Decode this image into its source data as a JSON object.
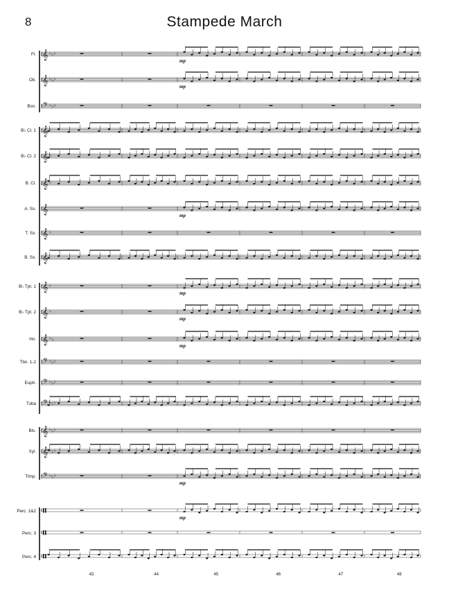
{
  "page_number": "8",
  "title": "Stampede March",
  "measure_numbers": [
    "43",
    "44",
    "45",
    "46",
    "47",
    "48"
  ],
  "instruments": [
    {
      "label": "Fl.",
      "clef": "treble",
      "key": 3
    },
    {
      "label": "Ob.",
      "clef": "treble",
      "key": 3
    },
    {
      "label": "Bsn.",
      "clef": "bass",
      "key": 3
    },
    {
      "label": "B♭ Cl. 1",
      "clef": "treble",
      "key": 1
    },
    {
      "label": "B♭ Cl. 2",
      "clef": "treble",
      "key": 1
    },
    {
      "label": "B. Cl.",
      "clef": "treble",
      "key": 1
    },
    {
      "label": "A. Sx.",
      "clef": "treble",
      "key": 0
    },
    {
      "label": "T. Sx.",
      "clef": "treble",
      "key": 1
    },
    {
      "label": "B. Sx.",
      "clef": "treble",
      "key": 0
    },
    {
      "label": "B♭ Tpt. 1",
      "clef": "treble",
      "key": 1
    },
    {
      "label": "B♭ Tpt. 2",
      "clef": "treble",
      "key": 1
    },
    {
      "label": "Hn.",
      "clef": "treble",
      "key": 2
    },
    {
      "label": "Tbn. 1-2",
      "clef": "bass",
      "key": 3
    },
    {
      "label": "Euph.",
      "clef": "bass",
      "key": 3
    },
    {
      "label": "Tuba",
      "clef": "bass",
      "key": 3
    },
    {
      "label": "Bls.",
      "clef": "treble",
      "key": 3
    },
    {
      "label": "Xyl.",
      "clef": "treble",
      "key": 3
    },
    {
      "label": "Timp.",
      "clef": "bass",
      "key": 3
    },
    {
      "label": "Perc. 1&2",
      "clef": "perc",
      "key": 0
    },
    {
      "label": "Perc. 3",
      "clef": "perc",
      "key": 0
    },
    {
      "label": "Perc. 4",
      "clef": "perc",
      "key": 0
    }
  ],
  "dynamics": [
    "mp",
    "mp",
    "mp",
    "mp",
    "mp",
    "mp",
    "mp",
    "mp",
    "mp"
  ]
}
